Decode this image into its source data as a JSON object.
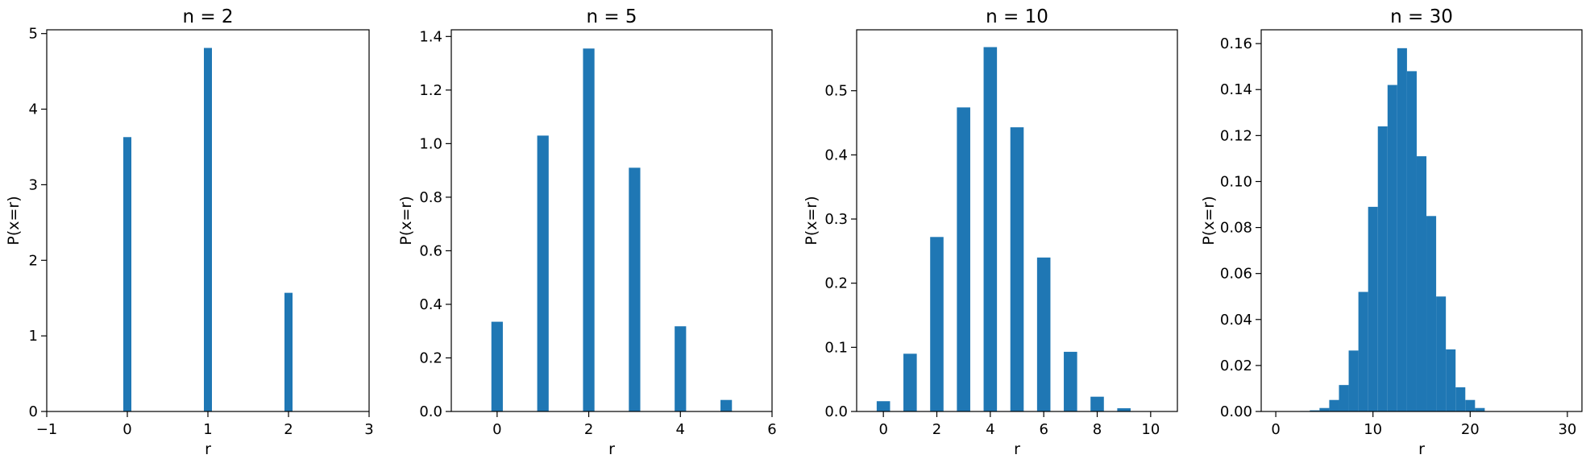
{
  "chart_data": [
    {
      "type": "bar",
      "title": "n = 2",
      "xlabel": "r",
      "ylabel": "P(x=r)",
      "xlim": [
        -1,
        3
      ],
      "ylim": [
        0,
        5.05
      ],
      "xticks": [
        -1,
        0,
        1,
        2,
        3
      ],
      "xtick_labels": [
        "−1",
        "0",
        "1",
        "2",
        "3"
      ],
      "yticks": [
        0,
        1,
        2,
        3,
        4,
        5
      ],
      "ytick_labels": [
        "0",
        "1",
        "2",
        "3",
        "4",
        "5"
      ],
      "bar_width": 0.1,
      "color": "#1f77b4",
      "x": [
        0,
        1,
        2
      ],
      "values": [
        3.63,
        4.81,
        1.57
      ]
    },
    {
      "type": "bar",
      "title": "n = 5",
      "xlabel": "r",
      "ylabel": "P(x=r)",
      "xlim": [
        -1,
        6
      ],
      "ylim": [
        0,
        1.425
      ],
      "xticks": [
        0,
        2,
        4,
        6
      ],
      "xtick_labels": [
        "0",
        "2",
        "4",
        "6"
      ],
      "yticks": [
        0,
        0.2,
        0.4,
        0.6,
        0.8,
        1.0,
        1.2,
        1.4
      ],
      "ytick_labels": [
        "0.0",
        "0.2",
        "0.4",
        "0.6",
        "0.8",
        "1.0",
        "1.2",
        "1.4"
      ],
      "bar_width": 0.25,
      "color": "#1f77b4",
      "x": [
        0,
        1,
        2,
        3,
        4,
        5
      ],
      "values": [
        0.335,
        1.03,
        1.355,
        0.91,
        0.318,
        0.043
      ]
    },
    {
      "type": "bar",
      "title": "n = 10",
      "xlabel": "r",
      "ylabel": "P(x=r)",
      "xlim": [
        -1,
        11
      ],
      "ylim": [
        0,
        0.595
      ],
      "xticks": [
        0,
        2,
        4,
        6,
        8,
        10
      ],
      "xtick_labels": [
        "0",
        "2",
        "4",
        "6",
        "8",
        "10"
      ],
      "yticks": [
        0,
        0.1,
        0.2,
        0.3,
        0.4,
        0.5
      ],
      "ytick_labels": [
        "0.0",
        "0.1",
        "0.2",
        "0.3",
        "0.4",
        "0.5"
      ],
      "bar_width": 0.5,
      "color": "#1f77b4",
      "x": [
        0,
        1,
        2,
        3,
        4,
        5,
        6,
        7,
        8,
        9,
        10
      ],
      "values": [
        0.016,
        0.09,
        0.272,
        0.474,
        0.568,
        0.443,
        0.24,
        0.093,
        0.023,
        0.005,
        0.0005
      ]
    },
    {
      "type": "bar",
      "title": "n = 30",
      "xlabel": "r",
      "ylabel": "P(x=r)",
      "xlim": [
        -1.5,
        31.5
      ],
      "ylim": [
        0,
        0.166
      ],
      "xticks": [
        0,
        10,
        20,
        30
      ],
      "xtick_labels": [
        "0",
        "10",
        "20",
        "30"
      ],
      "yticks": [
        0,
        0.02,
        0.04,
        0.06,
        0.08,
        0.1,
        0.12,
        0.14,
        0.16
      ],
      "ytick_labels": [
        "0.00",
        "0.02",
        "0.04",
        "0.06",
        "0.08",
        "0.10",
        "0.12",
        "0.14",
        "0.16"
      ],
      "bar_width": 1.0,
      "color": "#1f77b4",
      "x": [
        3,
        4,
        5,
        6,
        7,
        8,
        9,
        10,
        11,
        12,
        13,
        14,
        15,
        16,
        17,
        18,
        19,
        20,
        21
      ],
      "values": [
        0.0002,
        0.0005,
        0.0015,
        0.005,
        0.0115,
        0.0265,
        0.052,
        0.089,
        0.124,
        0.142,
        0.158,
        0.148,
        0.111,
        0.085,
        0.05,
        0.027,
        0.0105,
        0.005,
        0.0015
      ]
    }
  ]
}
